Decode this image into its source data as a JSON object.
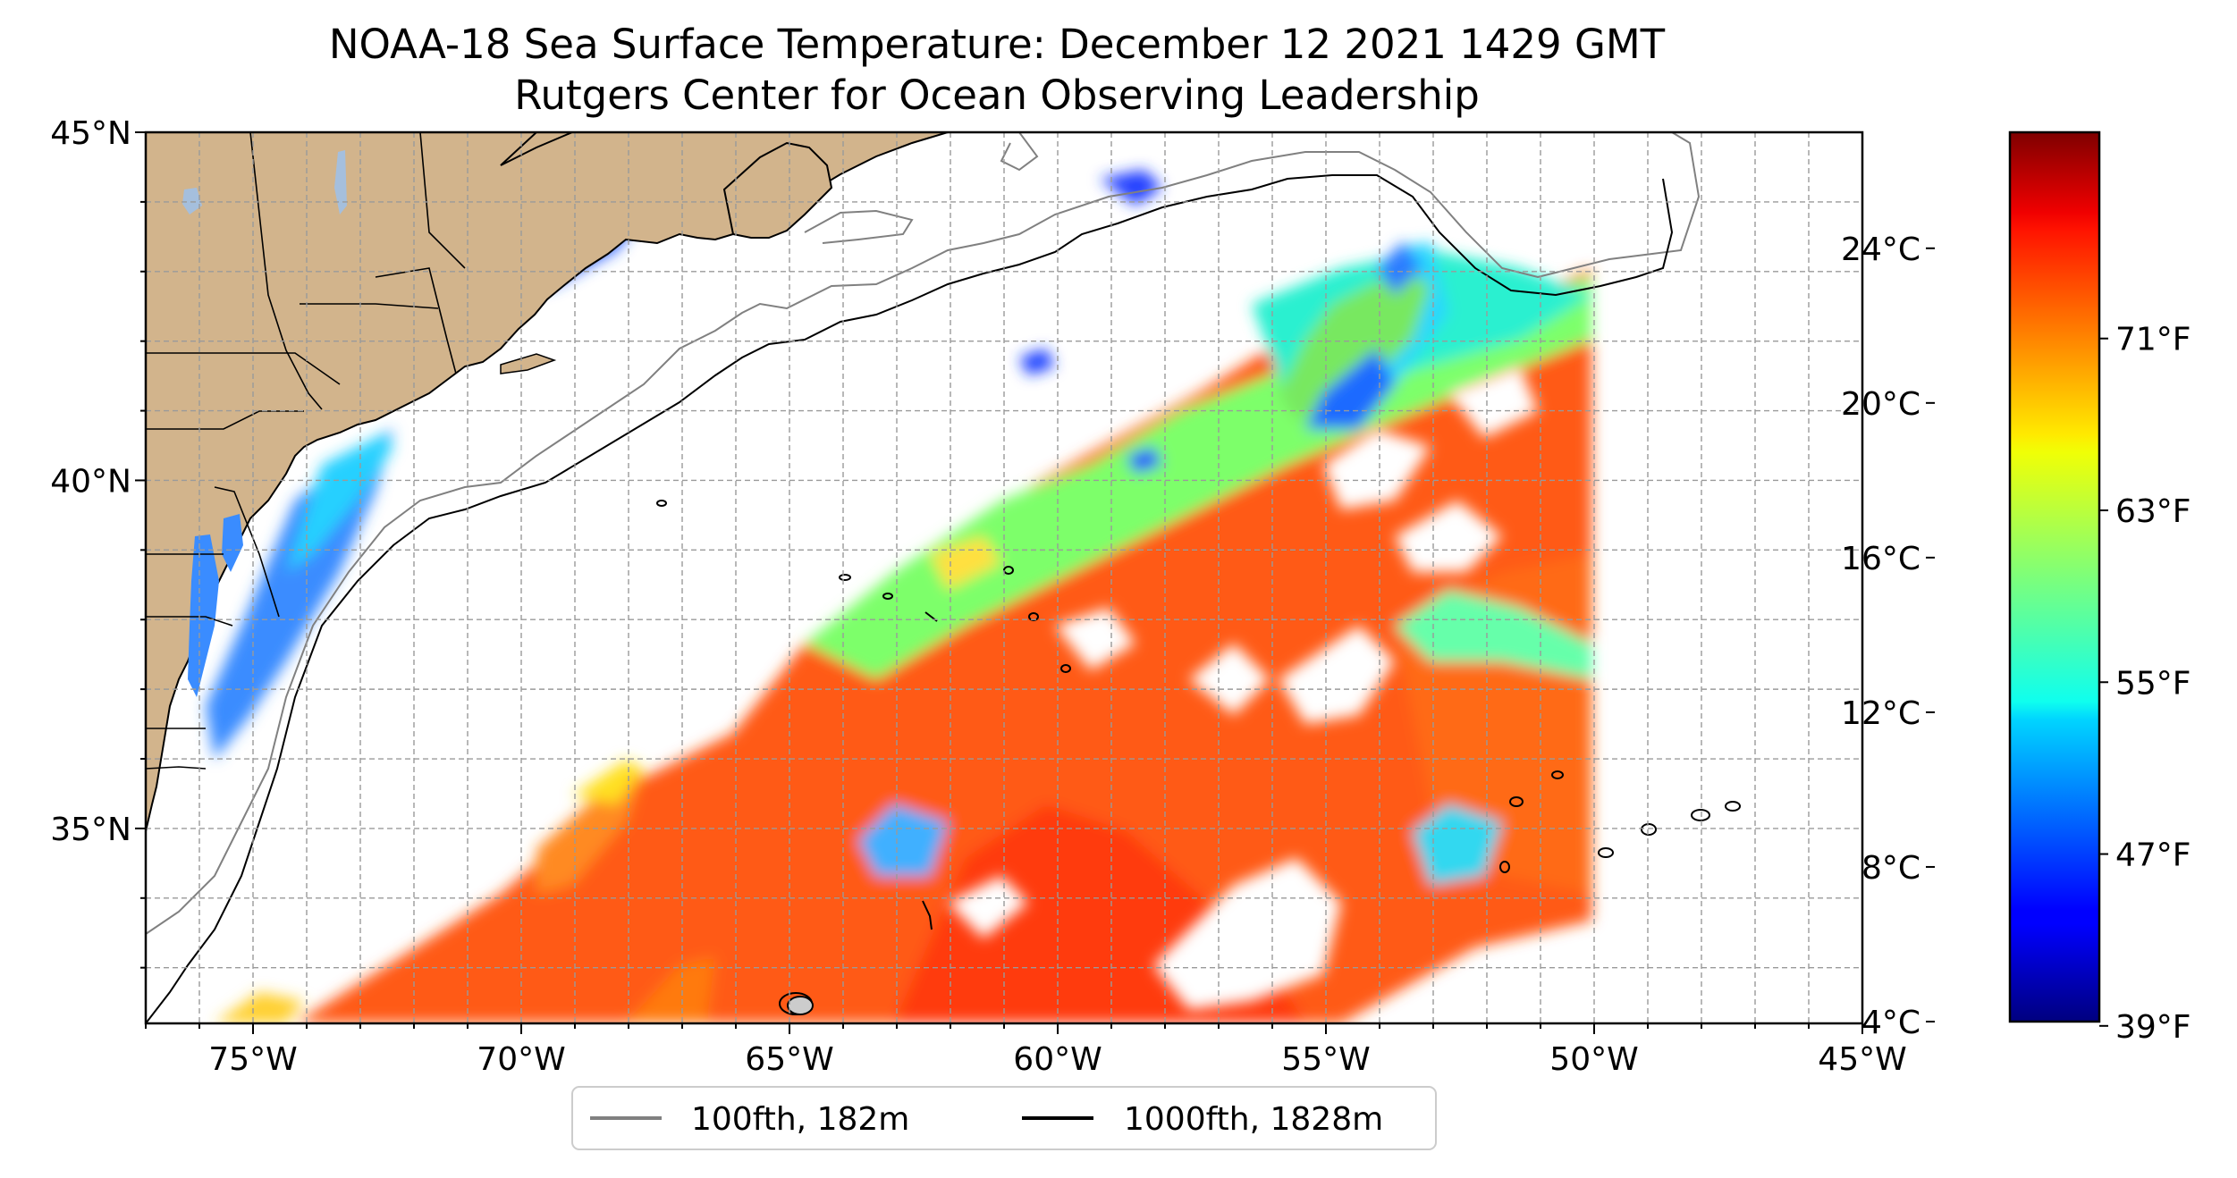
{
  "title": {
    "line1": "NOAA-18 Sea Surface Temperature: December 12 2021 1429 GMT",
    "line2": "Rutgers Center for Ocean Observing Leadership"
  },
  "map": {
    "lon_range": [
      -77,
      -45
    ],
    "lat_range": [
      32.2,
      45
    ],
    "land_color": "#d2b48c",
    "lake_color": "#a5bfdd",
    "lat_ticks": [
      {
        "value": 45,
        "label": "45°N"
      },
      {
        "value": 40,
        "label": "40°N"
      },
      {
        "value": 35,
        "label": "35°N"
      }
    ],
    "lon_ticks": [
      {
        "value": -75,
        "label": "75°W"
      },
      {
        "value": -70,
        "label": "70°W"
      },
      {
        "value": -65,
        "label": "65°W"
      },
      {
        "value": -60,
        "label": "60°W"
      },
      {
        "value": -55,
        "label": "55°W"
      },
      {
        "value": -50,
        "label": "50°W"
      },
      {
        "value": -45,
        "label": "45°W"
      }
    ],
    "gridlines": "dashed"
  },
  "legend": {
    "items": [
      {
        "label": "100fth, 182m",
        "color": "#808080"
      },
      {
        "label": "1000fth, 1828m",
        "color": "#000000"
      }
    ]
  },
  "colorbar": {
    "colormap": "jet",
    "range_celsius": [
      4,
      27
    ],
    "celsius_ticks": [
      {
        "value": 4,
        "label": "4°C"
      },
      {
        "value": 8,
        "label": "8°C"
      },
      {
        "value": 12,
        "label": "12°C"
      },
      {
        "value": 16,
        "label": "16°C"
      },
      {
        "value": 20,
        "label": "20°C"
      },
      {
        "value": 24,
        "label": "24°C"
      }
    ],
    "fahrenheit_ticks": [
      {
        "value": 39,
        "label": "39°F"
      },
      {
        "value": 47,
        "label": "47°F"
      },
      {
        "value": 55,
        "label": "55°F"
      },
      {
        "value": 63,
        "label": "63°F"
      },
      {
        "value": 71,
        "label": "71°F"
      }
    ]
  }
}
